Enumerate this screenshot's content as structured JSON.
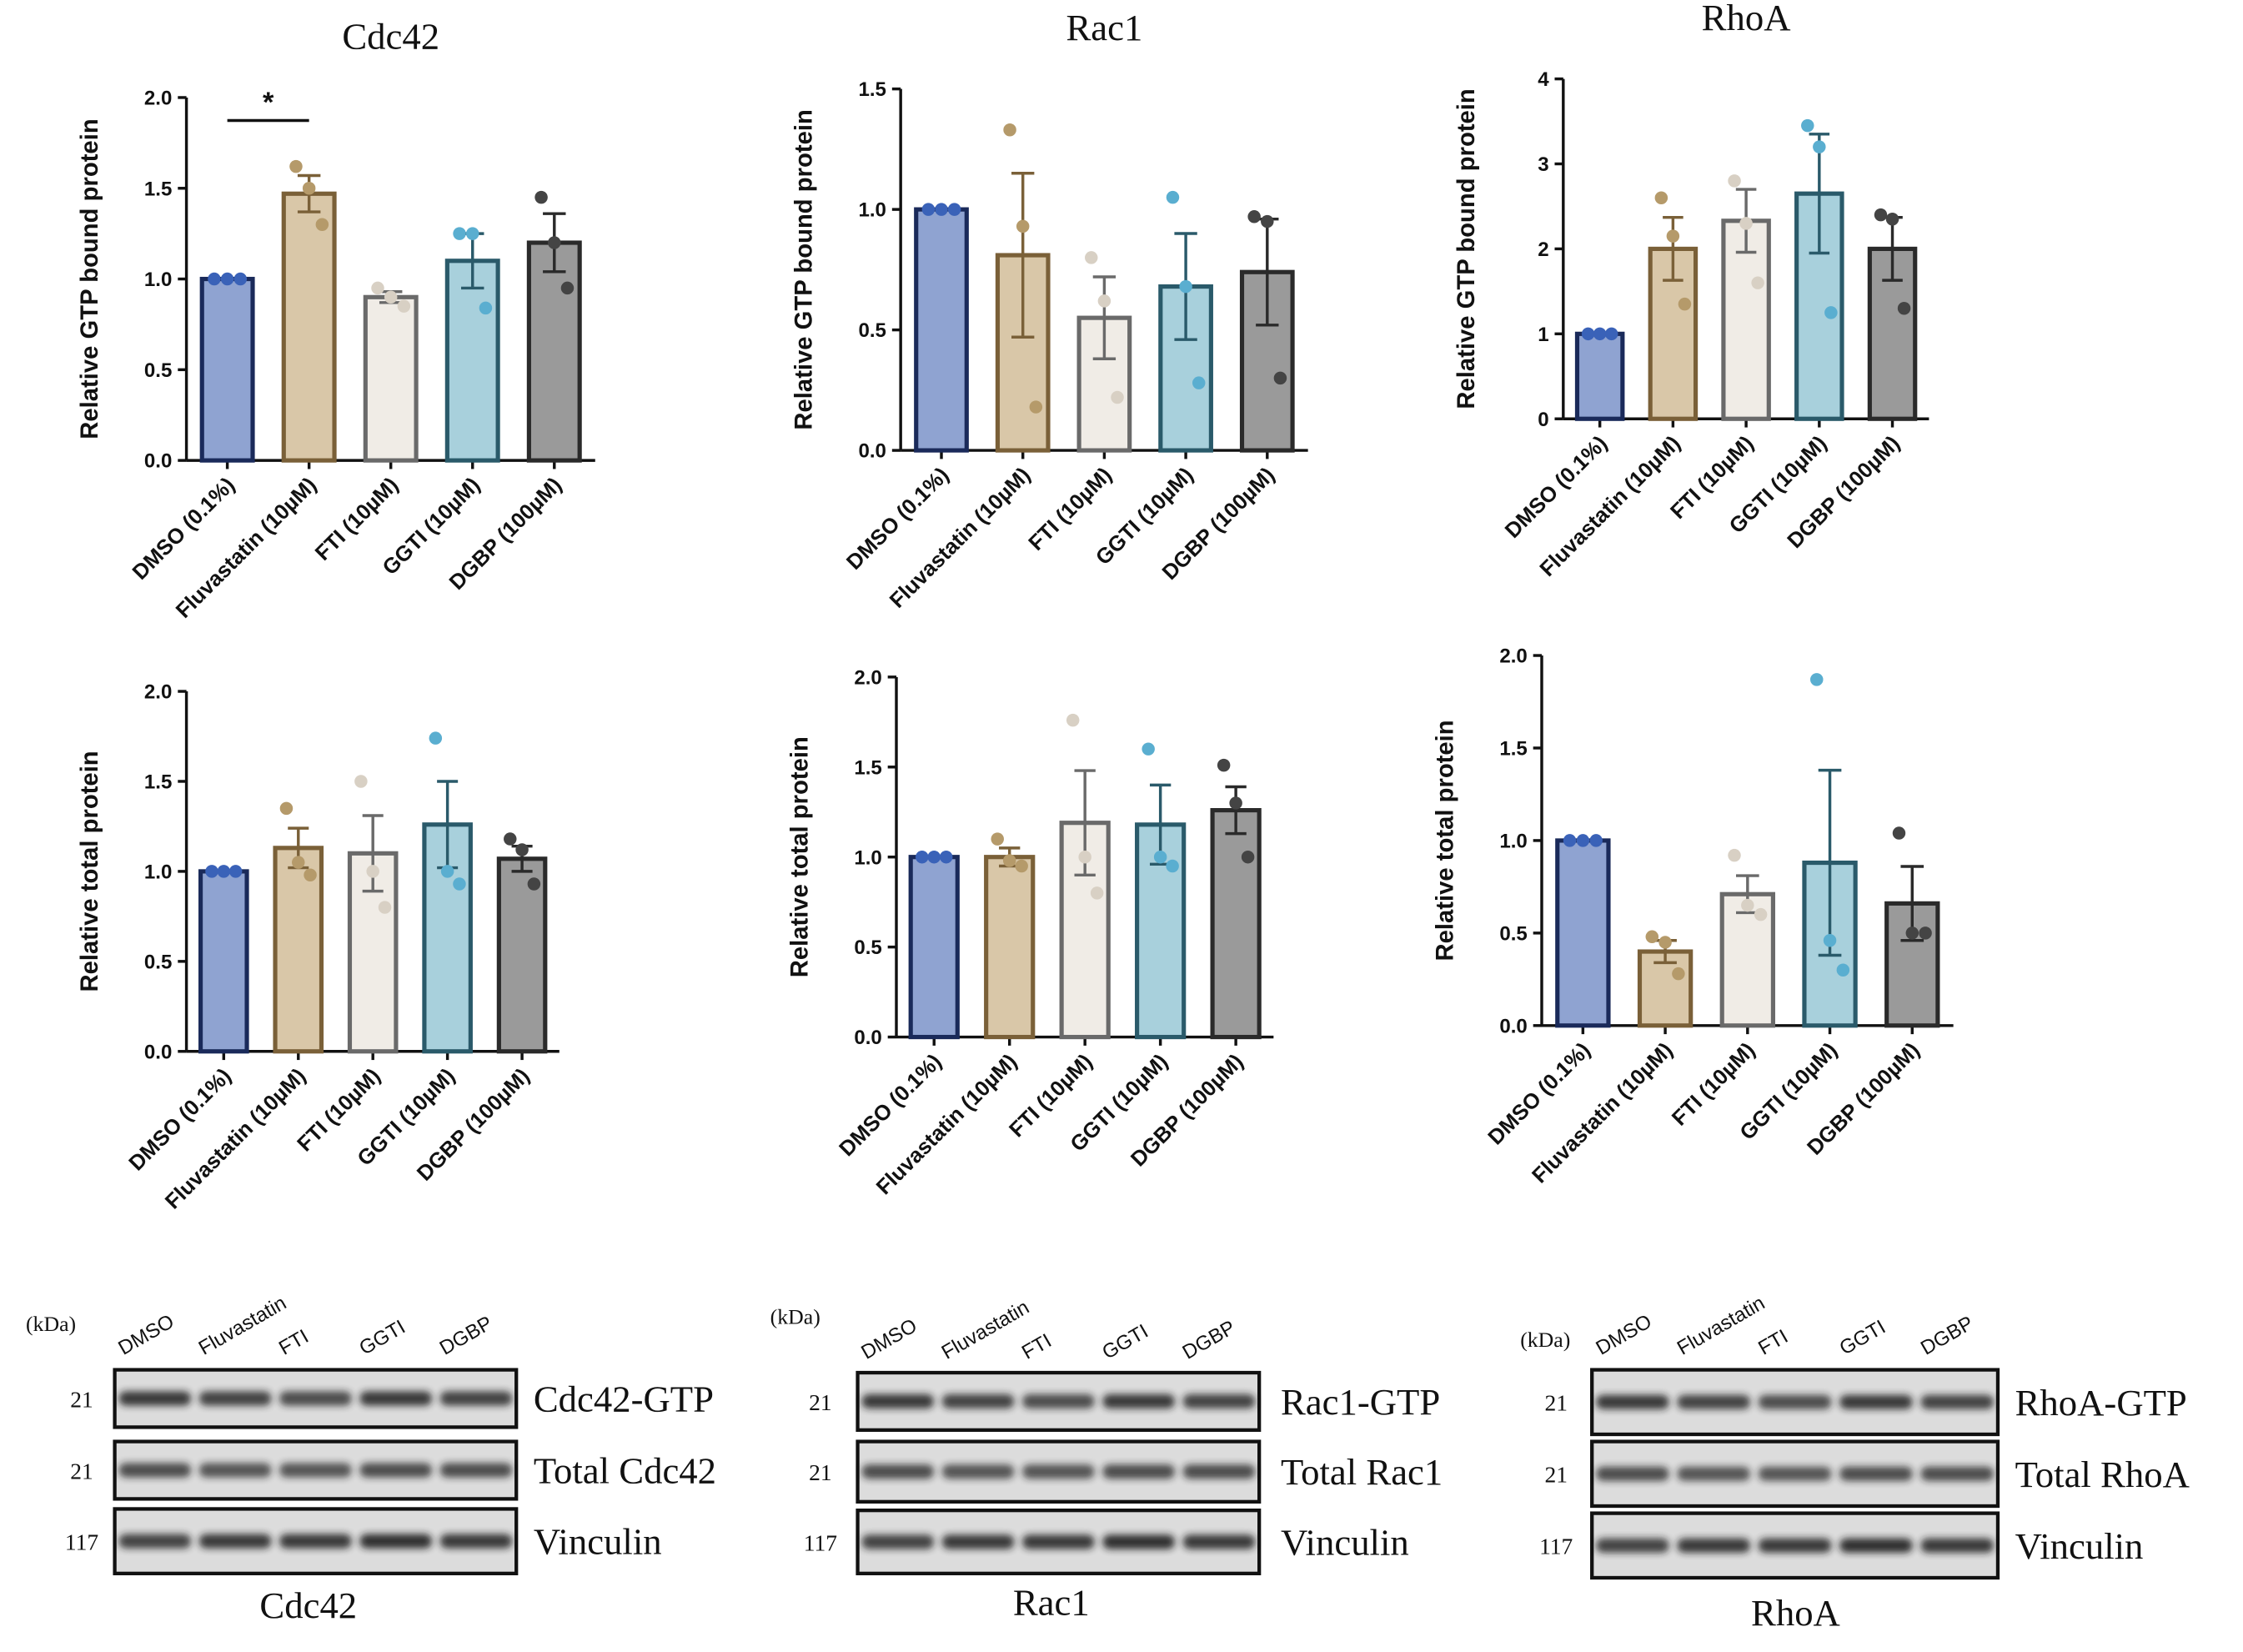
{
  "chart_data": [
    {
      "type": "bar",
      "title": "Cdc42",
      "ylabel": "Relative GTP bound protein",
      "categories": [
        "DMSO (0.1%)",
        "Fluvastatin (10µM)",
        "FTI (10µM)",
        "GGTI (10µM)",
        "DGBP (100µM)"
      ],
      "values": [
        1.0,
        1.47,
        0.9,
        1.1,
        1.2
      ],
      "errors": [
        0,
        0.1,
        0.03,
        0.15,
        0.16
      ],
      "points": [
        [
          1,
          1,
          1
        ],
        [
          1.62,
          1.5,
          1.3
        ],
        [
          0.95,
          0.9,
          0.85
        ],
        [
          1.25,
          1.25,
          0.84
        ],
        [
          1.45,
          1.2,
          0.95
        ]
      ],
      "colors": [
        "#8fa3d1",
        "#d9c7a8",
        "#f0ece6",
        "#a8d0dc",
        "#9a9a9a"
      ],
      "edge_colors": [
        "#1a2a5a",
        "#7a6038",
        "#6a6a6a",
        "#2a5a6a",
        "#2a2a2a"
      ],
      "point_colors": [
        "#3a62b8",
        "#b59a6a",
        "#d8d0c4",
        "#5aaed0",
        "#444444"
      ],
      "ylim": [
        0,
        2
      ],
      "yticks": [
        {
          "value": 0,
          "label": "0.0"
        },
        {
          "value": 0.5,
          "label": "0.5"
        },
        {
          "value": 1,
          "label": "1.0"
        },
        {
          "value": 1.5,
          "label": "1.5"
        },
        {
          "value": 2,
          "label": "2.0"
        }
      ],
      "significance": {
        "label": "*",
        "pair": [
          0,
          1
        ]
      }
    },
    {
      "type": "bar",
      "title": "Rac1",
      "ylabel": "Relative GTP bound protein",
      "categories": [
        "DMSO (0.1%)",
        "Fluvastatin (10µM)",
        "FTI (10µM)",
        "GGTI (10µM)",
        "DGBP (100µM)"
      ],
      "values": [
        1.0,
        0.81,
        0.55,
        0.68,
        0.74
      ],
      "errors": [
        0,
        0.34,
        0.17,
        0.22,
        0.22
      ],
      "points": [
        [
          1,
          1,
          1
        ],
        [
          1.33,
          0.93,
          0.18
        ],
        [
          0.8,
          0.62,
          0.22
        ],
        [
          1.05,
          0.68,
          0.28
        ],
        [
          0.97,
          0.95,
          0.3
        ]
      ],
      "colors": [
        "#8fa3d1",
        "#d9c7a8",
        "#f0ece6",
        "#a8d0dc",
        "#9a9a9a"
      ],
      "edge_colors": [
        "#1a2a5a",
        "#7a6038",
        "#6a6a6a",
        "#2a5a6a",
        "#2a2a2a"
      ],
      "point_colors": [
        "#3a62b8",
        "#b59a6a",
        "#d8d0c4",
        "#5aaed0",
        "#444444"
      ],
      "ylim": [
        0,
        1.5
      ],
      "yticks": [
        {
          "value": 0,
          "label": "0.0"
        },
        {
          "value": 0.5,
          "label": "0.5"
        },
        {
          "value": 1,
          "label": "1.0"
        },
        1.5
      ]
    },
    {
      "type": "bar",
      "title": "RhoA",
      "ylabel": "Relative GTP bound protein",
      "categories": [
        "DMSO (0.1%)",
        "Fluvastatin (10µM)",
        "FTI (10µM)",
        "GGTI (10µM)",
        "DGBP (100µM)"
      ],
      "values": [
        1.0,
        2.0,
        2.33,
        2.65,
        2.0
      ],
      "errors": [
        0,
        0.37,
        0.37,
        0.7,
        0.37
      ],
      "points": [
        [
          1,
          1,
          1
        ],
        [
          2.6,
          2.15,
          1.35
        ],
        [
          2.8,
          2.3,
          1.6
        ],
        [
          3.45,
          3.2,
          1.25
        ],
        [
          2.4,
          2.35,
          1.3
        ]
      ],
      "colors": [
        "#8fa3d1",
        "#d9c7a8",
        "#f0ece6",
        "#a8d0dc",
        "#9a9a9a"
      ],
      "edge_colors": [
        "#1a2a5a",
        "#7a6038",
        "#6a6a6a",
        "#2a5a6a",
        "#2a2a2a"
      ],
      "point_colors": [
        "#3a62b8",
        "#b59a6a",
        "#d8d0c4",
        "#5aaed0",
        "#444444"
      ],
      "ylim": [
        0,
        4
      ],
      "yticks": [
        0,
        1,
        2,
        3,
        4
      ]
    },
    {
      "type": "bar",
      "ylabel": "Relative total protein",
      "categories": [
        "DMSO (0.1%)",
        "Fluvastatin (10µM)",
        "FTI (10µM)",
        "GGTI (10µM)",
        "DGBP (100µM)"
      ],
      "values": [
        1.0,
        1.13,
        1.1,
        1.26,
        1.07
      ],
      "errors": [
        0,
        0.11,
        0.21,
        0.24,
        0.07
      ],
      "points": [
        [
          1,
          1,
          1
        ],
        [
          1.35,
          1.05,
          0.98
        ],
        [
          1.5,
          1.0,
          0.8
        ],
        [
          1.74,
          1.0,
          0.93
        ],
        [
          1.18,
          1.12,
          0.93
        ]
      ],
      "colors": [
        "#8fa3d1",
        "#d9c7a8",
        "#f0ece6",
        "#a8d0dc",
        "#9a9a9a"
      ],
      "edge_colors": [
        "#1a2a5a",
        "#7a6038",
        "#6a6a6a",
        "#2a5a6a",
        "#2a2a2a"
      ],
      "point_colors": [
        "#3a62b8",
        "#b59a6a",
        "#d8d0c4",
        "#5aaed0",
        "#444444"
      ],
      "ylim": [
        0,
        2
      ],
      "yticks": [
        {
          "value": 0,
          "label": "0.0"
        },
        {
          "value": 0.5,
          "label": "0.5"
        },
        {
          "value": 1,
          "label": "1.0"
        },
        {
          "value": 1.5,
          "label": "1.5"
        },
        {
          "value": 2,
          "label": "2.0"
        }
      ]
    },
    {
      "type": "bar",
      "ylabel": "Relative total protein",
      "categories": [
        "DMSO (0.1%)",
        "Fluvastatin (10µM)",
        "FTI (10µM)",
        "GGTI (10µM)",
        "DGBP (100µM)"
      ],
      "values": [
        1.0,
        1.0,
        1.19,
        1.18,
        1.26
      ],
      "errors": [
        0,
        0.05,
        0.29,
        0.22,
        0.13
      ],
      "points": [
        [
          1,
          1,
          1
        ],
        [
          1.1,
          0.98,
          0.95
        ],
        [
          1.76,
          1.0,
          0.8
        ],
        [
          1.6,
          1.0,
          0.95
        ],
        [
          1.51,
          1.3,
          1.0
        ]
      ],
      "colors": [
        "#8fa3d1",
        "#d9c7a8",
        "#f0ece6",
        "#a8d0dc",
        "#9a9a9a"
      ],
      "edge_colors": [
        "#1a2a5a",
        "#7a6038",
        "#6a6a6a",
        "#2a5a6a",
        "#2a2a2a"
      ],
      "point_colors": [
        "#3a62b8",
        "#b59a6a",
        "#d8d0c4",
        "#5aaed0",
        "#444444"
      ],
      "ylim": [
        0,
        2
      ],
      "yticks": [
        {
          "value": 0,
          "label": "0.0"
        },
        {
          "value": 0.5,
          "label": "0.5"
        },
        {
          "value": 1,
          "label": "1.0"
        },
        {
          "value": 1.5,
          "label": "1.5"
        },
        {
          "value": 2,
          "label": "2.0"
        }
      ]
    },
    {
      "type": "bar",
      "ylabel": "Relative total protein",
      "categories": [
        "DMSO (0.1%)",
        "Fluvastatin (10µM)",
        "FTI (10µM)",
        "GGTI (10µM)",
        "DGBP (100µM)"
      ],
      "values": [
        1.0,
        0.4,
        0.71,
        0.88,
        0.66
      ],
      "errors": [
        0,
        0.06,
        0.1,
        0.5,
        0.2
      ],
      "points": [
        [
          1,
          1,
          1
        ],
        [
          0.48,
          0.45,
          0.28
        ],
        [
          0.92,
          0.65,
          0.6
        ],
        [
          1.87,
          0.46,
          0.3
        ],
        [
          1.04,
          0.5,
          0.5
        ]
      ],
      "colors": [
        "#8fa3d1",
        "#d9c7a8",
        "#f0ece6",
        "#a8d0dc",
        "#9a9a9a"
      ],
      "edge_colors": [
        "#1a2a5a",
        "#7a6038",
        "#6a6a6a",
        "#2a5a6a",
        "#2a2a2a"
      ],
      "point_colors": [
        "#3a62b8",
        "#b59a6a",
        "#d8d0c4",
        "#5aaed0",
        "#444444"
      ],
      "ylim": [
        0,
        2
      ],
      "yticks": [
        {
          "value": 0,
          "label": "0.0"
        },
        {
          "value": 0.5,
          "label": "0.5"
        },
        {
          "value": 1,
          "label": "1.0"
        },
        {
          "value": 1.5,
          "label": "1.5"
        },
        {
          "value": 2,
          "label": "2.0"
        }
      ]
    }
  ],
  "blots": [
    {
      "title": "Cdc42",
      "unit": "(kDa)",
      "lanes": [
        "DMSO",
        "Fluvastatin",
        "FTI",
        "GGTI",
        "DGBP"
      ],
      "rows": [
        {
          "mw": "21",
          "label": "Cdc42-GTP"
        },
        {
          "mw": "21",
          "label": "Total Cdc42"
        },
        {
          "mw": "117",
          "label": "Vinculin"
        }
      ]
    },
    {
      "title": "Rac1",
      "unit": "(kDa)",
      "lanes": [
        "DMSO",
        "Fluvastatin",
        "FTI",
        "GGTI",
        "DGBP"
      ],
      "rows": [
        {
          "mw": "21",
          "label": "Rac1-GTP"
        },
        {
          "mw": "21",
          "label": "Total Rac1"
        },
        {
          "mw": "117",
          "label": "Vinculin"
        }
      ]
    },
    {
      "title": "RhoA",
      "unit": "(kDa)",
      "lanes": [
        "DMSO",
        "Fluvastatin",
        "FTI",
        "GGTI",
        "DGBP"
      ],
      "rows": [
        {
          "mw": "21",
          "label": "RhoA-GTP"
        },
        {
          "mw": "21",
          "label": "Total RhoA"
        },
        {
          "mw": "117",
          "label": "Vinculin"
        }
      ]
    }
  ]
}
